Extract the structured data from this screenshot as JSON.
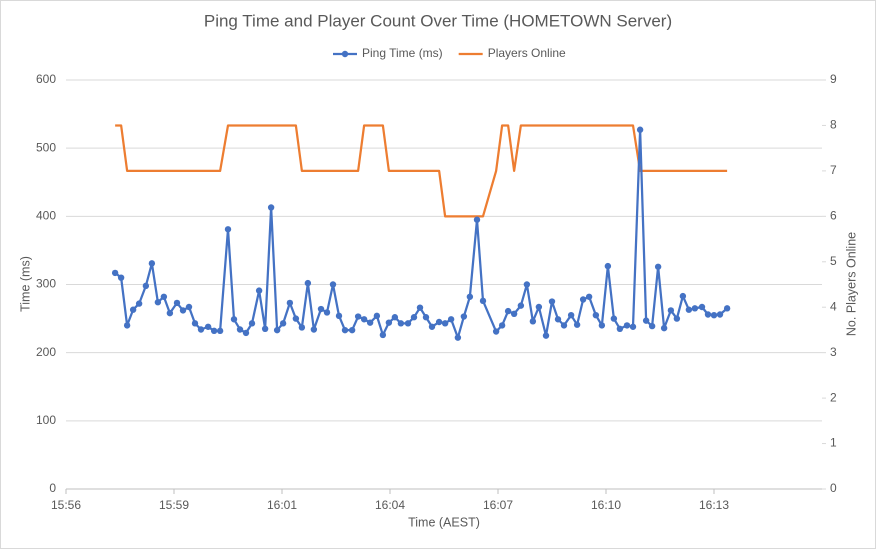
{
  "chart_data": {
    "type": "line",
    "title": "Ping Time and Player Count Over Time (HOMETOWN Server)",
    "x_label": "Time (AEST)",
    "y_label": "Time (ms)",
    "y2_label": "No. Players Online",
    "x": [
      957.47,
      957.63,
      957.79,
      957.95,
      958.11,
      958.29,
      958.45,
      958.61,
      958.77,
      958.93,
      959.12,
      959.28,
      959.44,
      959.6,
      959.76,
      959.95,
      960.11,
      960.27,
      960.48,
      960.64,
      960.8,
      960.96,
      961.12,
      961.31,
      961.47,
      961.63,
      961.79,
      961.95,
      962.13,
      962.29,
      962.45,
      962.61,
      962.77,
      962.96,
      963.12,
      963.28,
      963.44,
      963.6,
      963.79,
      963.95,
      964.11,
      964.27,
      964.45,
      964.61,
      964.77,
      964.93,
      965.09,
      965.28,
      965.44,
      965.6,
      965.76,
      965.92,
      966.11,
      966.27,
      966.43,
      966.61,
      966.77,
      966.93,
      967.12,
      967.28,
      967.63,
      967.79,
      967.95,
      968.11,
      968.29,
      968.45,
      968.61,
      968.77,
      968.96,
      969.12,
      969.28,
      969.44,
      969.63,
      969.79,
      969.95,
      970.11,
      970.29,
      970.45,
      970.61,
      970.77,
      970.93,
      971.12,
      971.28,
      971.47,
      971.63,
      971.79,
      971.95,
      972.11,
      972.29,
      972.45,
      972.61,
      972.77,
      972.93,
      973.12,
      973.28,
      973.44,
      973.6,
      973.79
    ],
    "series": [
      {
        "name": "Ping Time (ms)",
        "color": "#4472c4",
        "axis": "y",
        "markers": true,
        "values": [
          317,
          310,
          240,
          263,
          272,
          298,
          331,
          274,
          282,
          258,
          273,
          262,
          267,
          243,
          234,
          238,
          232,
          232,
          381,
          249,
          234,
          229,
          243,
          291,
          235,
          413,
          233,
          243,
          273,
          250,
          237,
          302,
          234,
          264,
          259,
          300,
          254,
          233,
          233,
          253,
          249,
          244,
          254,
          226,
          244,
          252,
          243,
          243,
          252,
          266,
          252,
          238,
          245,
          243,
          249,
          222,
          253,
          282,
          395,
          276,
          231,
          240,
          261,
          257,
          269,
          300,
          246,
          267,
          225,
          275,
          249,
          240,
          255,
          241,
          278,
          282,
          255,
          240,
          327,
          250,
          235,
          240,
          238,
          527,
          247,
          239,
          326,
          236,
          262,
          250,
          283,
          263,
          265,
          267,
          256,
          255,
          256,
          265
        ]
      },
      {
        "name": "Players Online",
        "color": "#ed7d31",
        "axis": "y2",
        "markers": false,
        "values": [
          8,
          8,
          7,
          7,
          7,
          7,
          7,
          7,
          7,
          7,
          7,
          7,
          7,
          7,
          7,
          7,
          7,
          7,
          8,
          8,
          8,
          8,
          8,
          8,
          8,
          8,
          8,
          8,
          8,
          8,
          7,
          7,
          7,
          7,
          7,
          7,
          7,
          7,
          7,
          7,
          8,
          8,
          8,
          8,
          7,
          7,
          7,
          7,
          7,
          7,
          7,
          7,
          7,
          6,
          6,
          6,
          6,
          6,
          6,
          6,
          7,
          8,
          8,
          7,
          8,
          8,
          8,
          8,
          8,
          8,
          8,
          8,
          8,
          8,
          8,
          8,
          8,
          8,
          8,
          8,
          8,
          8,
          8,
          7,
          7,
          7,
          7,
          7,
          7,
          7,
          7,
          7,
          7,
          7,
          7,
          7,
          7,
          7
        ]
      }
    ],
    "xlim": [
      956.16,
      976.32
    ],
    "xticks": [
      {
        "value": 956.16,
        "label": "15:56"
      },
      {
        "value": 959.04,
        "label": "15:59"
      },
      {
        "value": 961.92,
        "label": "16:01"
      },
      {
        "value": 964.8,
        "label": "16:04"
      },
      {
        "value": 967.68,
        "label": "16:07"
      },
      {
        "value": 970.56,
        "label": "16:10"
      },
      {
        "value": 973.44,
        "label": "16:13"
      }
    ],
    "ylim": [
      0,
      600
    ],
    "yticks": [
      0,
      100,
      200,
      300,
      400,
      500,
      600
    ],
    "y2lim": [
      0,
      9
    ],
    "y2ticks": [
      0,
      1,
      2,
      3,
      4,
      5,
      6,
      7,
      8,
      9
    ],
    "grid": true,
    "legend": "top"
  }
}
